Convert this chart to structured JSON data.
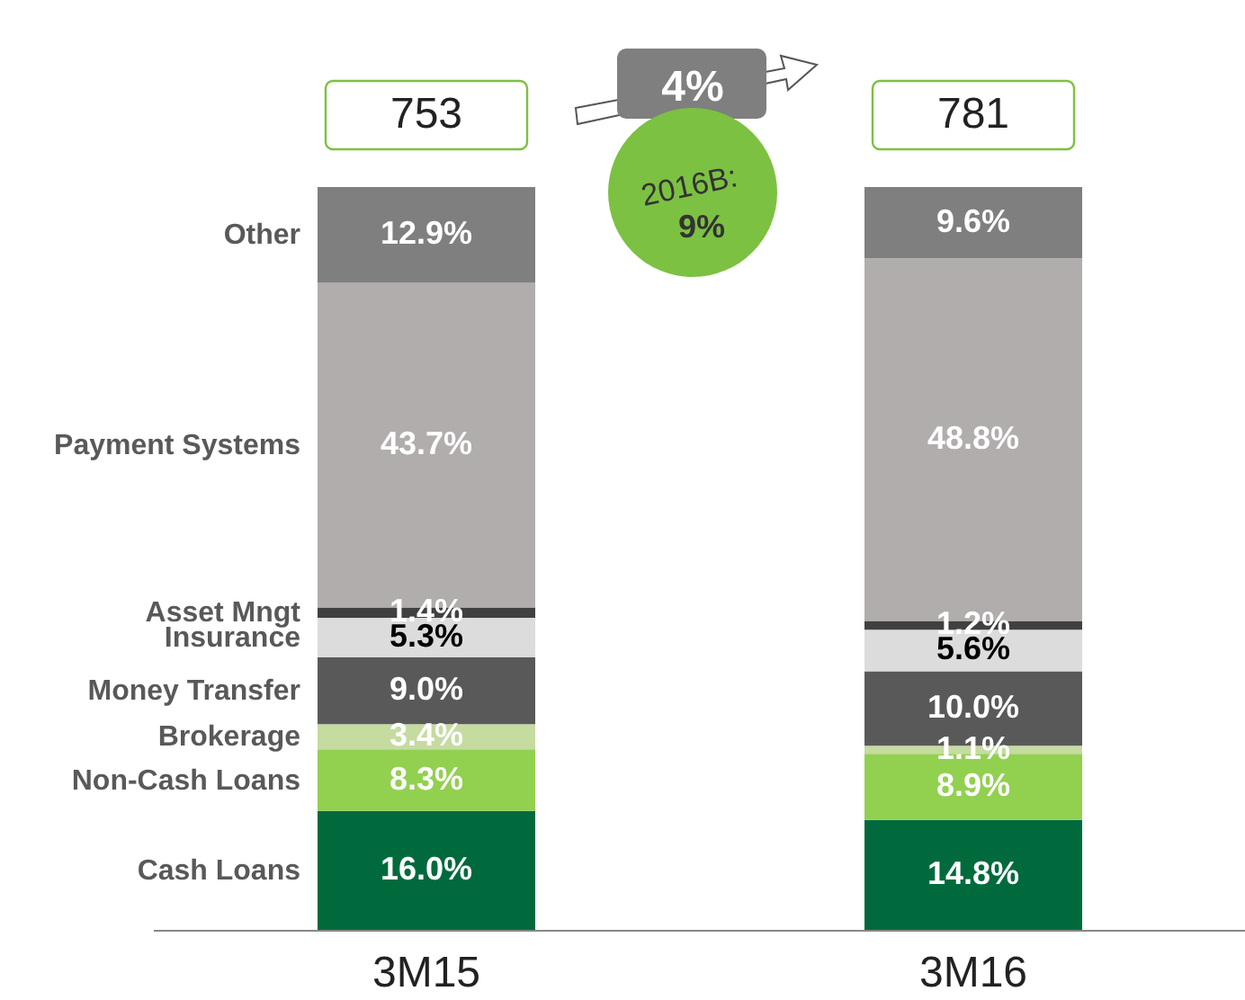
{
  "chart_data": {
    "type": "bar",
    "stacked": true,
    "categories": [
      "3M15",
      "3M16"
    ],
    "series": [
      {
        "name": "Cash Loans",
        "color": "#006a3d",
        "values": [
          16.0,
          14.8
        ],
        "value_labels": [
          "16.0%",
          "14.8%"
        ]
      },
      {
        "name": "Non-Cash Loans",
        "color": "#92d050",
        "values": [
          8.3,
          8.9
        ],
        "value_labels": [
          "8.3%",
          "8.9%"
        ]
      },
      {
        "name": "Brokerage",
        "color": "#c5dba0",
        "values": [
          3.4,
          1.1
        ],
        "value_labels": [
          "3.4%",
          "1.1%"
        ]
      },
      {
        "name": "Money Transfer",
        "color": "#595959",
        "values": [
          9.0,
          10.0
        ],
        "value_labels": [
          "9.0%",
          "10.0%"
        ]
      },
      {
        "name": "Insurance",
        "color": "#dcdcdc",
        "values": [
          5.3,
          5.6
        ],
        "value_labels": [
          "5.3%",
          "5.6%"
        ]
      },
      {
        "name": "Asset Mngt",
        "color": "#404040",
        "values": [
          1.4,
          1.2
        ],
        "value_labels": [
          "1.4%",
          "1.2%"
        ]
      },
      {
        "name": "Payment Systems",
        "color": "#b0adac",
        "values": [
          43.7,
          48.8
        ],
        "value_labels": [
          "43.7%",
          "48.8%"
        ]
      },
      {
        "name": "Other",
        "color": "#7f7f7f",
        "values": [
          12.9,
          9.6
        ],
        "value_labels": [
          "12.9%",
          "9.6%"
        ]
      }
    ],
    "annotations": [
      "4%",
      "2016B:",
      "9%",
      "753",
      "781"
    ]
  }
}
